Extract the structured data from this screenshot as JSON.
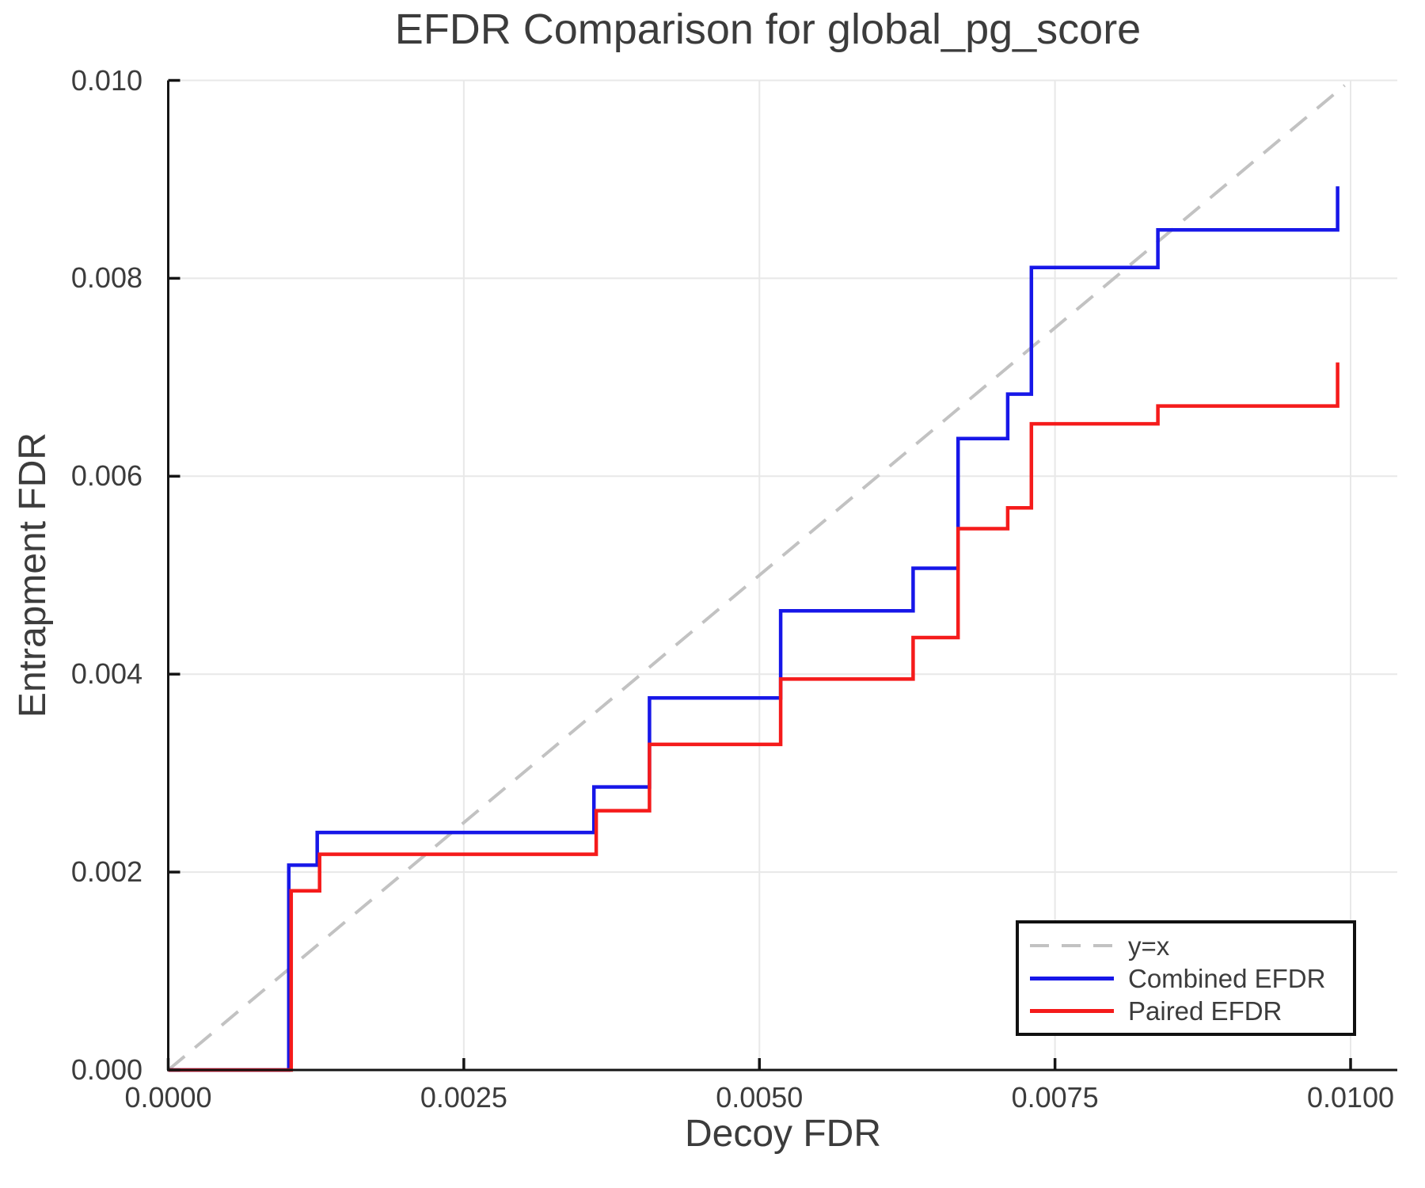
{
  "chart_data": {
    "type": "line",
    "subtype": "step",
    "title": "EFDR Comparison for global_pg_score",
    "xlabel": "Decoy FDR",
    "ylabel": "Entrapment FDR",
    "xlim": [
      0,
      0.010395
    ],
    "ylim": [
      0,
      0.01
    ],
    "grid": true,
    "legend_position": "bottom-right",
    "x_ticks": {
      "values": [
        0.0,
        0.0025,
        0.005,
        0.0075,
        0.01
      ],
      "labels": [
        "0.0000",
        "0.0025",
        "0.0050",
        "0.0075",
        "0.0100"
      ]
    },
    "y_ticks": {
      "values": [
        0.0,
        0.002,
        0.004,
        0.006,
        0.008,
        0.01
      ],
      "labels": [
        "0.000",
        "0.002",
        "0.004",
        "0.006",
        "0.008",
        "0.010"
      ]
    },
    "reference_line": {
      "label": "y=x",
      "style": "dashed",
      "color": "#c2c2c2",
      "from": [
        0,
        0
      ],
      "to": [
        0.00995,
        0.00995
      ]
    },
    "series": [
      {
        "name": "Combined EFDR",
        "color": "#1717e8",
        "points": [
          [
            0.0,
            0.0
          ],
          [
            0.00102,
            0.0
          ],
          [
            0.00102,
            0.00207
          ],
          [
            0.00126,
            0.00207
          ],
          [
            0.00126,
            0.0024
          ],
          [
            0.0036,
            0.0024
          ],
          [
            0.0036,
            0.00286
          ],
          [
            0.00407,
            0.00286
          ],
          [
            0.00407,
            0.00376
          ],
          [
            0.00518,
            0.00376
          ],
          [
            0.00518,
            0.00464
          ],
          [
            0.0063,
            0.00464
          ],
          [
            0.0063,
            0.00507
          ],
          [
            0.00668,
            0.00507
          ],
          [
            0.00668,
            0.00638
          ],
          [
            0.0071,
            0.00638
          ],
          [
            0.0071,
            0.00683
          ],
          [
            0.0073,
            0.00683
          ],
          [
            0.0073,
            0.00811
          ],
          [
            0.00837,
            0.00811
          ],
          [
            0.00837,
            0.00849
          ],
          [
            0.00989,
            0.00849
          ],
          [
            0.00989,
            0.00893
          ]
        ]
      },
      {
        "name": "Paired EFDR",
        "color": "#f51b1b",
        "points": [
          [
            0.0,
            0.0
          ],
          [
            0.00104,
            0.0
          ],
          [
            0.00104,
            0.00181
          ],
          [
            0.00128,
            0.00181
          ],
          [
            0.00128,
            0.00218
          ],
          [
            0.00362,
            0.00218
          ],
          [
            0.00362,
            0.00262
          ],
          [
            0.00407,
            0.00262
          ],
          [
            0.00407,
            0.00329
          ],
          [
            0.00518,
            0.00329
          ],
          [
            0.00518,
            0.00395
          ],
          [
            0.0063,
            0.00395
          ],
          [
            0.0063,
            0.00437
          ],
          [
            0.00668,
            0.00437
          ],
          [
            0.00668,
            0.00547
          ],
          [
            0.0071,
            0.00547
          ],
          [
            0.0071,
            0.00568
          ],
          [
            0.0073,
            0.00568
          ],
          [
            0.0073,
            0.00653
          ],
          [
            0.00837,
            0.00653
          ],
          [
            0.00837,
            0.00671
          ],
          [
            0.00989,
            0.00671
          ],
          [
            0.00989,
            0.00715
          ]
        ]
      }
    ],
    "legend": {
      "entries": [
        {
          "label": "y=x",
          "style": "dashed",
          "color": "#c2c2c2"
        },
        {
          "label": "Combined EFDR",
          "style": "solid",
          "color": "#1717e8"
        },
        {
          "label": "Paired EFDR",
          "style": "solid",
          "color": "#f51b1b"
        }
      ]
    }
  }
}
